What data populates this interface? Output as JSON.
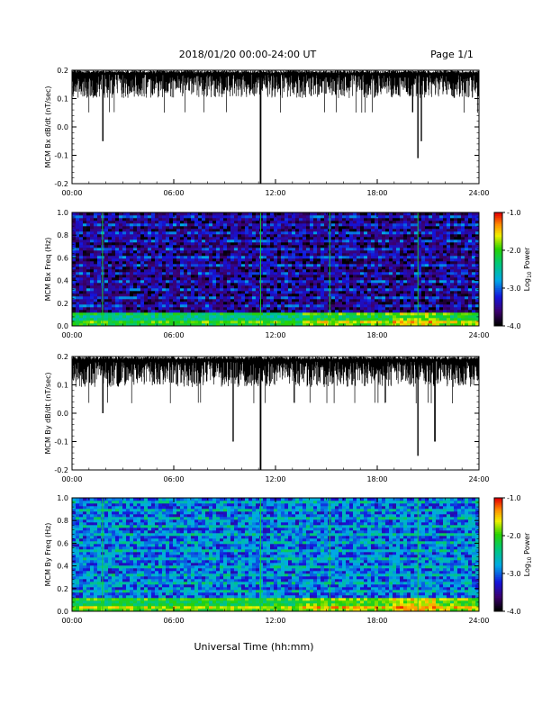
{
  "header": {
    "title": "2018/01/20  00:00-24:00 UT",
    "page": "Page 1/1"
  },
  "x_tick_labels": [
    "00:00",
    "06:00",
    "12:00",
    "18:00",
    "24:00"
  ],
  "x_axis_label": "Universal Time (hh:mm)",
  "colorbar": {
    "label": "Log",
    "label_subscript": "10",
    "label_suffix": " Power",
    "tick_labels": [
      "-1.0",
      "-2.0",
      "-3.0",
      "-4.0"
    ],
    "range": [
      -4.0,
      -1.0
    ],
    "colormap": "rainbow"
  },
  "chart_data": [
    {
      "type": "line",
      "ylabel": "MCM Bx dB/dt (nT/sec)",
      "x_range_hours": [
        0,
        24
      ],
      "ylim": [
        -0.2,
        0.2
      ],
      "y_tick_labels": [
        "0.2",
        "0.1",
        "0.0",
        "-0.1",
        "-0.2"
      ],
      "baseline": 0.2,
      "typical_min": 0.1,
      "spikes": [
        {
          "t": 1.82,
          "y": -0.05
        },
        {
          "t": 11.12,
          "y": -0.2
        },
        {
          "t": 20.4,
          "y": -0.11
        },
        {
          "t": 20.6,
          "y": -0.05
        }
      ],
      "color": "#000000"
    },
    {
      "type": "heatmap",
      "ylabel": "MCM Bx Freq (Hz)",
      "x_range_hours": [
        0,
        24
      ],
      "ylim": [
        0.0,
        1.0
      ],
      "y_tick_labels": [
        "1.0",
        "0.8",
        "0.6",
        "0.4",
        "0.2",
        "0.0"
      ],
      "value_range": [
        -4.0,
        -1.0
      ],
      "background_level": -3.6,
      "low_freq_level": -2.6,
      "bright_time_hours": [
        1.8,
        11.12,
        15.2,
        20.4
      ]
    },
    {
      "type": "line",
      "ylabel": "MCM By dB/dt (nT/sec)",
      "x_range_hours": [
        0,
        24
      ],
      "ylim": [
        -0.2,
        0.2
      ],
      "y_tick_labels": [
        "0.2",
        "0.1",
        "0.0",
        "-0.1",
        "-0.2"
      ],
      "baseline": 0.2,
      "typical_min": 0.09,
      "spikes": [
        {
          "t": 1.82,
          "y": 0.0
        },
        {
          "t": 9.5,
          "y": -0.1
        },
        {
          "t": 11.12,
          "y": -0.2
        },
        {
          "t": 20.4,
          "y": -0.15
        },
        {
          "t": 21.4,
          "y": -0.1
        }
      ],
      "color": "#000000"
    },
    {
      "type": "heatmap",
      "ylabel": "MCM By Freq (Hz)",
      "x_range_hours": [
        0,
        24
      ],
      "ylim": [
        0.0,
        1.0
      ],
      "y_tick_labels": [
        "1.0",
        "0.8",
        "0.6",
        "0.4",
        "0.2",
        "0.0"
      ],
      "value_range": [
        -4.0,
        -1.0
      ],
      "background_level": -3.0,
      "low_freq_level": -2.4,
      "bright_time_hours": [
        1.8,
        11.12,
        15.2,
        20.4
      ]
    }
  ]
}
